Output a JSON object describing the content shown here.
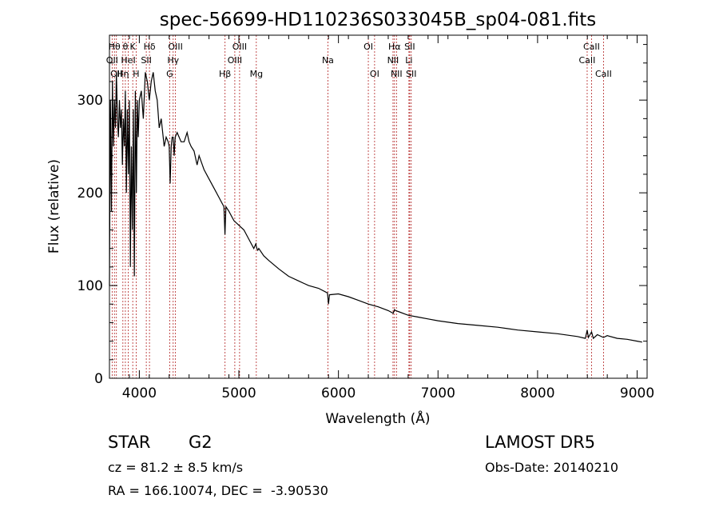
{
  "chart_data": {
    "type": "line",
    "title": "spec-56699-HD110236S033045B_sp04-081.fits",
    "xlabel": "Wavelength (Å)",
    "ylabel": "Flux (relative)",
    "xlim": [
      3700,
      9100
    ],
    "ylim": [
      0,
      370
    ],
    "xticks": [
      4000,
      5000,
      6000,
      7000,
      8000,
      9000
    ],
    "yticks": [
      0,
      100,
      200,
      300
    ],
    "grid": false,
    "legend": "none",
    "line_color": "#000000",
    "marker_color": "#b22222",
    "series": [
      {
        "x": [
          3700,
          3710,
          3720,
          3730,
          3740,
          3750,
          3760,
          3770,
          3780,
          3790,
          3800,
          3810,
          3820,
          3830,
          3840,
          3850,
          3860,
          3870,
          3880,
          3890,
          3900,
          3910,
          3920,
          3930,
          3940,
          3950,
          3960,
          3970,
          3980,
          3990,
          4000,
          4020,
          4040,
          4060,
          4080,
          4100,
          4120,
          4140,
          4160,
          4180,
          4200,
          4220,
          4250,
          4270,
          4290,
          4300,
          4310,
          4320,
          4330,
          4340,
          4350,
          4360,
          4380,
          4400,
          4420,
          4450,
          4480,
          4500,
          4520,
          4550,
          4580,
          4600,
          4650,
          4700,
          4750,
          4800,
          4850,
          4860,
          4870,
          4900,
          4950,
          5000,
          5050,
          5100,
          5150,
          5170,
          5180,
          5190,
          5200,
          5250,
          5300,
          5400,
          5500,
          5600,
          5700,
          5800,
          5890,
          5900,
          5910,
          6000,
          6100,
          6200,
          6300,
          6400,
          6500,
          6550,
          6563,
          6575,
          6600,
          6700,
          6800,
          6900,
          7000,
          7200,
          7400,
          7600,
          7800,
          8000,
          8200,
          8400,
          8480,
          8498,
          8510,
          8542,
          8560,
          8600,
          8662,
          8700,
          8800,
          8900,
          9000,
          9050
        ],
        "y": [
          100,
          300,
          180,
          320,
          250,
          300,
          270,
          330,
          280,
          260,
          300,
          270,
          290,
          230,
          280,
          250,
          310,
          200,
          290,
          220,
          300,
          120,
          250,
          160,
          290,
          110,
          310,
          200,
          300,
          260,
          300,
          310,
          280,
          330,
          320,
          300,
          320,
          330,
          310,
          300,
          270,
          280,
          250,
          260,
          255,
          250,
          210,
          250,
          260,
          260,
          240,
          260,
          265,
          260,
          255,
          255,
          265,
          255,
          250,
          245,
          230,
          240,
          225,
          215,
          205,
          195,
          185,
          155,
          185,
          180,
          170,
          165,
          160,
          150,
          140,
          145,
          140,
          138,
          140,
          132,
          127,
          118,
          110,
          105,
          100,
          97,
          92,
          80,
          90,
          91,
          88,
          84,
          80,
          77,
          73,
          70,
          74,
          73,
          72,
          68,
          66,
          64,
          62,
          59,
          57,
          55,
          52,
          50,
          48,
          45,
          43,
          52,
          44,
          50,
          43,
          47,
          44,
          46,
          43,
          42,
          40,
          39
        ]
      }
    ],
    "line_markers": [
      {
        "label": "OII",
        "x": 3727,
        "row": 2
      },
      {
        "label": "Hθ",
        "x": 3750,
        "row": 1
      },
      {
        "label": "OII",
        "x": 3770,
        "row": 3
      },
      {
        "label": "Hη",
        "x": 3835,
        "row": 3
      },
      {
        "label": "θ",
        "x": 3860,
        "row": 1
      },
      {
        "label": "HeI",
        "x": 3889,
        "row": 2
      },
      {
        "label": "K",
        "x": 3934,
        "row": 1
      },
      {
        "label": "H",
        "x": 3968,
        "row": 3
      },
      {
        "label": "Hδ",
        "x": 4102,
        "row": 1
      },
      {
        "label": "SII",
        "x": 4070,
        "row": 2
      },
      {
        "label": "OIII",
        "x": 4363,
        "row": 1
      },
      {
        "label": "Hγ",
        "x": 4340,
        "row": 2
      },
      {
        "label": "G",
        "x": 4305,
        "row": 3
      },
      {
        "label": "Hβ",
        "x": 4861,
        "row": 3
      },
      {
        "label": "OIII",
        "x": 4959,
        "row": 2
      },
      {
        "label": "OIII",
        "x": 5007,
        "row": 1
      },
      {
        "label": "Mg",
        "x": 5175,
        "row": 3
      },
      {
        "label": "Na",
        "x": 5894,
        "row": 2
      },
      {
        "label": "OI",
        "x": 6300,
        "row": 1
      },
      {
        "label": "OI",
        "x": 6363,
        "row": 3
      },
      {
        "label": "NII",
        "x": 6548,
        "row": 2
      },
      {
        "label": "Hα",
        "x": 6563,
        "row": 1
      },
      {
        "label": "NII",
        "x": 6583,
        "row": 3
      },
      {
        "label": "Li",
        "x": 6708,
        "row": 2
      },
      {
        "label": "SII",
        "x": 6716,
        "row": 1
      },
      {
        "label": "SII",
        "x": 6731,
        "row": 3
      },
      {
        "label": "CaII",
        "x": 8498,
        "row": 2
      },
      {
        "label": "CaII",
        "x": 8542,
        "row": 1
      },
      {
        "label": "CaII",
        "x": 8662,
        "row": 3
      }
    ]
  },
  "info": {
    "object_type": "STAR",
    "subclass": "G2",
    "survey": "LAMOST DR5",
    "redshift": "cz = 81.2 ± 8.5 km/s",
    "obs_date": "Obs-Date: 20140210",
    "coords": "RA = 166.10074, DEC =  -3.90530"
  }
}
